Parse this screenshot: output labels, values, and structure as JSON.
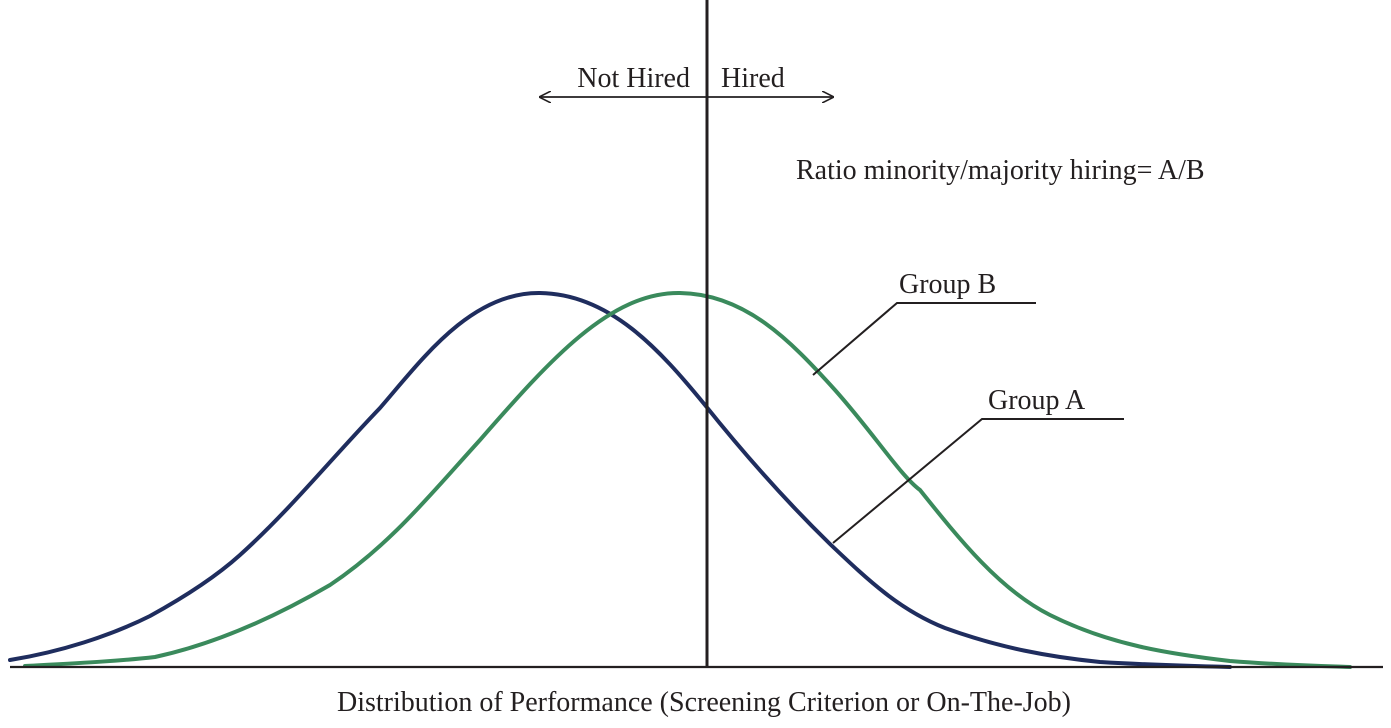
{
  "labels": {
    "not_hired": "Not Hired",
    "hired": "Hired",
    "ratio": "Ratio minority/majority hiring= A/B",
    "group_b": "Group B",
    "group_a": "Group A",
    "x_axis": "Distribution of Performance (Screening Criterion or On-The-Job)"
  },
  "colors": {
    "group_a": "#1f2d5e",
    "group_b": "#3a8a5c",
    "axis": "#231f20"
  },
  "series": [
    {
      "name": "Group A",
      "color_key": "group_a"
    },
    {
      "name": "Group B",
      "color_key": "group_b"
    }
  ]
}
